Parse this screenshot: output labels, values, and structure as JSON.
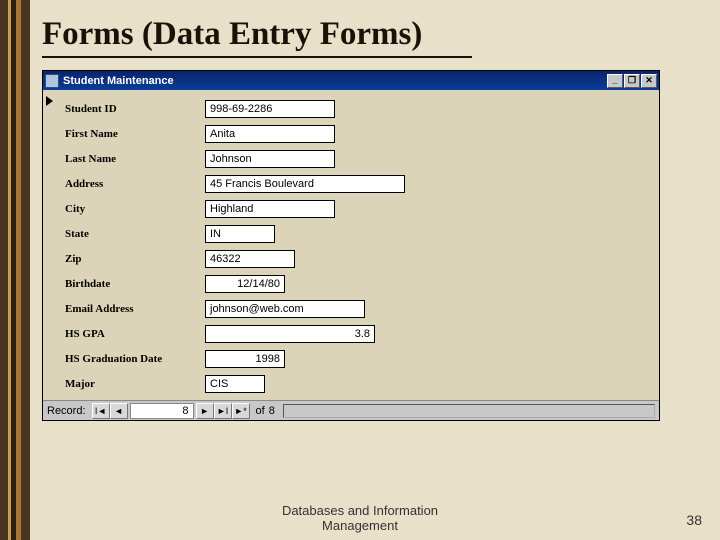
{
  "slide": {
    "title": "Forms (Data Entry Forms)",
    "footer_line1": "Databases and Information",
    "footer_line2": "Management",
    "page_number": "38",
    "background_color": "#e8e0c8",
    "stripe_colors": [
      "#4a3520",
      "#c8a050",
      "#302010",
      "#a87838",
      "#4a3520"
    ]
  },
  "window": {
    "title": "Student Maintenance",
    "titlebar_color": "#0a246a",
    "form_bg": "#dcd4b8",
    "min_label": "_",
    "restore_label": "❐",
    "close_label": "✕"
  },
  "fields": [
    {
      "label": "Student ID",
      "value": "998-69-2286",
      "cls": "w-id",
      "align": "left"
    },
    {
      "label": "First Name",
      "value": "Anita",
      "cls": "w-name",
      "align": "left"
    },
    {
      "label": "Last Name",
      "value": "Johnson",
      "cls": "w-name",
      "align": "left"
    },
    {
      "label": "Address",
      "value": "45 Francis Boulevard",
      "cls": "w-addr",
      "align": "left"
    },
    {
      "label": "City",
      "value": "Highland",
      "cls": "w-city",
      "align": "left"
    },
    {
      "label": "State",
      "value": "IN",
      "cls": "w-state",
      "align": "left"
    },
    {
      "label": "Zip",
      "value": "46322",
      "cls": "w-zip",
      "align": "left"
    },
    {
      "label": "Birthdate",
      "value": "12/14/80",
      "cls": "w-date",
      "align": "right"
    },
    {
      "label": "Email Address",
      "value": "johnson@web.com",
      "cls": "w-email",
      "align": "left"
    },
    {
      "label": "HS GPA",
      "value": "3.8",
      "cls": "w-gpa",
      "align": "right"
    },
    {
      "label": "HS Graduation Date",
      "value": "1998",
      "cls": "w-year",
      "align": "right"
    },
    {
      "label": "Major",
      "value": "CIS",
      "cls": "w-major",
      "align": "left"
    }
  ],
  "nav": {
    "label": "Record:",
    "first": "I◄",
    "prev": "◄",
    "current": "8",
    "next": "►",
    "last": "►I",
    "new": "►*",
    "of_label": "of",
    "total": "8"
  }
}
